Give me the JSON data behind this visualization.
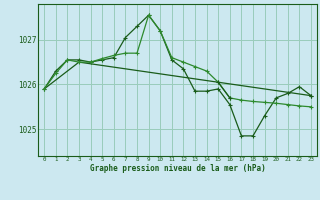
{
  "background_color": "#cce8f0",
  "grid_color": "#99ccbb",
  "line_color_dark": "#1a5c1a",
  "line_color_mid": "#2d8a2d",
  "xlabel": "Graphe pression niveau de la mer (hPa)",
  "xlim": [
    -0.5,
    23.5
  ],
  "ylim": [
    1024.4,
    1027.8
  ],
  "yticks": [
    1025,
    1026,
    1027
  ],
  "xticks": [
    0,
    1,
    2,
    3,
    4,
    5,
    6,
    7,
    8,
    9,
    10,
    11,
    12,
    13,
    14,
    15,
    16,
    17,
    18,
    19,
    20,
    21,
    22,
    23
  ],
  "series1": [
    1025.9,
    1026.3,
    1026.55,
    1026.55,
    1026.5,
    1026.55,
    1026.6,
    1027.05,
    1027.3,
    1027.55,
    1027.2,
    1026.55,
    1026.35,
    1025.85,
    1025.85,
    1025.9,
    1025.55,
    1024.85,
    1024.85,
    1025.3,
    1025.7,
    1025.8,
    1025.95,
    1025.75
  ],
  "series2": [
    1025.9,
    1026.25,
    1026.55,
    1026.5,
    1026.5,
    1026.58,
    1026.65,
    1026.7,
    1026.7,
    1027.55,
    1027.2,
    1026.6,
    1026.5,
    1026.4,
    1026.3,
    1026.05,
    1025.7,
    1025.65,
    1025.62,
    1025.6,
    1025.58,
    1025.55,
    1025.52,
    1025.5
  ],
  "series3": [
    1025.9,
    null,
    null,
    1026.5,
    null,
    null,
    null,
    null,
    null,
    null,
    null,
    null,
    null,
    null,
    null,
    null,
    null,
    null,
    null,
    null,
    null,
    null,
    null,
    1025.75
  ],
  "series4": [
    null,
    null,
    null,
    null,
    null,
    null,
    null,
    null,
    null,
    null,
    null,
    null,
    null,
    null,
    null,
    1026.05,
    1025.7,
    null,
    null,
    null,
    null,
    1025.8,
    null,
    1025.75
  ]
}
